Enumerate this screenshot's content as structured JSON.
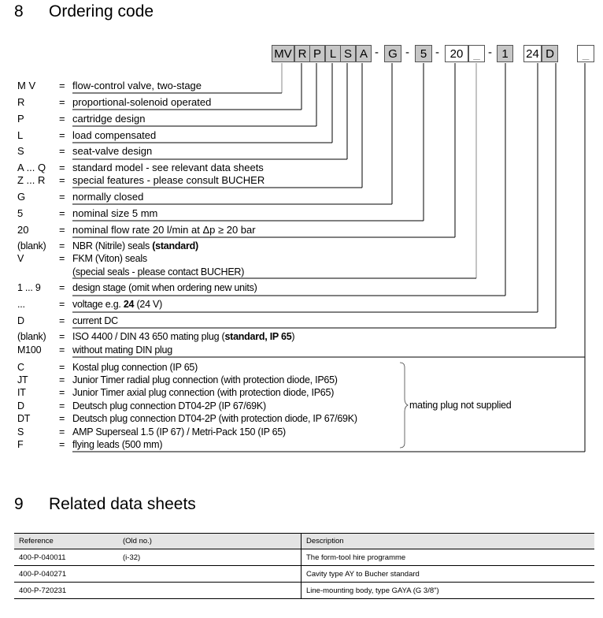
{
  "section8": {
    "number": "8",
    "title": "Ordering code"
  },
  "code_boxes": [
    {
      "text": "MV",
      "shaded": true
    },
    {
      "text": "R",
      "shaded": true
    },
    {
      "text": "P",
      "shaded": true
    },
    {
      "text": "L",
      "shaded": true
    },
    {
      "text": "S",
      "shaded": true
    },
    {
      "text": "A",
      "shaded": true
    },
    {
      "text": "G",
      "shaded": true
    },
    {
      "text": "5",
      "shaded": true
    },
    {
      "text": "20",
      "shaded": false
    },
    {
      "text": "_",
      "shaded": false
    },
    {
      "text": "1",
      "shaded": true
    },
    {
      "text": "24",
      "shaded": false
    },
    {
      "text": "D",
      "shaded": true
    },
    {
      "text": "_",
      "shaded": false
    }
  ],
  "dash": "-",
  "rows": [
    {
      "code": "M V",
      "eq": "=",
      "desc": [
        "flow-control valve, two-stage"
      ]
    },
    {
      "code": "R",
      "eq": "=",
      "desc": [
        "proportional-solenoid operated"
      ]
    },
    {
      "code": "P",
      "eq": "=",
      "desc": [
        "cartridge design"
      ]
    },
    {
      "code": "L",
      "eq": "=",
      "desc": [
        "load compensated"
      ]
    },
    {
      "code": "S",
      "eq": "=",
      "desc": [
        "seat-valve design"
      ]
    },
    {
      "code": "A ... Q",
      "eq": "=",
      "desc": [
        "standard model - see relevant data sheets"
      ]
    },
    {
      "code": "Z ... R",
      "eq": "=",
      "desc": [
        "special features - please consult BUCHER"
      ]
    },
    {
      "code": "G",
      "eq": "=",
      "desc": [
        "normally closed"
      ]
    },
    {
      "code": "5",
      "eq": "=",
      "desc": [
        "nominal size 5 mm"
      ]
    },
    {
      "code": "20",
      "eq": "=",
      "desc": [
        "nominal flow rate 20 l/min at Δp ≥ 20 bar"
      ]
    },
    {
      "code": "(blank)",
      "eq": "=",
      "desc": [
        "NBR (Nitrile) seals  ",
        "(standard)"
      ]
    },
    {
      "code": "V",
      "eq": "=",
      "desc": [
        "FKM (Viton) seals"
      ]
    },
    {
      "code": "",
      "eq": "",
      "desc": [
        "(special seals - please contact BUCHER)"
      ]
    },
    {
      "code": "1 ... 9",
      "eq": "=",
      "desc": [
        "design stage (omit when ordering new units)"
      ]
    },
    {
      "code": "...",
      "eq": "=",
      "desc": [
        "voltage e.g. ",
        "24",
        " (24 V)"
      ]
    },
    {
      "code": "D",
      "eq": "=",
      "desc": [
        "current  DC"
      ]
    },
    {
      "code": "(blank)",
      "eq": "=",
      "desc": [
        "ISO 4400 / DIN 43 650 mating plug (",
        "standard, IP 65",
        ")"
      ]
    },
    {
      "code": "M100",
      "eq": "=",
      "desc": [
        "without mating DIN plug"
      ]
    },
    {
      "code": "C",
      "eq": "=",
      "desc": [
        "Kostal plug connection (IP 65)"
      ]
    },
    {
      "code": "JT",
      "eq": "=",
      "desc": [
        "Junior Timer radial plug connection (with protection diode, IP65)"
      ]
    },
    {
      "code": "IT",
      "eq": "=",
      "desc": [
        "Junior Timer axial plug connection (with protection diode, IP65)"
      ]
    },
    {
      "code": "D",
      "eq": "=",
      "desc": [
        "Deutsch plug connection DT04-2P (IP 67/69K)"
      ]
    },
    {
      "code": "DT",
      "eq": "=",
      "desc": [
        "Deutsch plug connection DT04-2P (with protection diode, IP 67/69K)"
      ]
    },
    {
      "code": "S",
      "eq": "=",
      "desc": [
        "AMP Superseal 1.5 (IP 67) / Metri-Pack 150 (IP 65)"
      ]
    },
    {
      "code": "F",
      "eq": "=",
      "desc": [
        "flying leads (500 mm)"
      ]
    }
  ],
  "brace_note": "mating plug not supplied",
  "section9": {
    "number": "9",
    "title": "Related data sheets"
  },
  "table": {
    "headers": [
      "Reference",
      "(Old no.)",
      "Description"
    ],
    "rows": [
      [
        "400-P-040011",
        "(i-32)",
        "The form-tool hire programme"
      ],
      [
        "400-P-040271",
        "",
        "Cavity type AY to Bucher standard"
      ],
      [
        "400-P-720231",
        "",
        "Line-mounting body, type GAYA (G 3/8\")"
      ]
    ]
  }
}
